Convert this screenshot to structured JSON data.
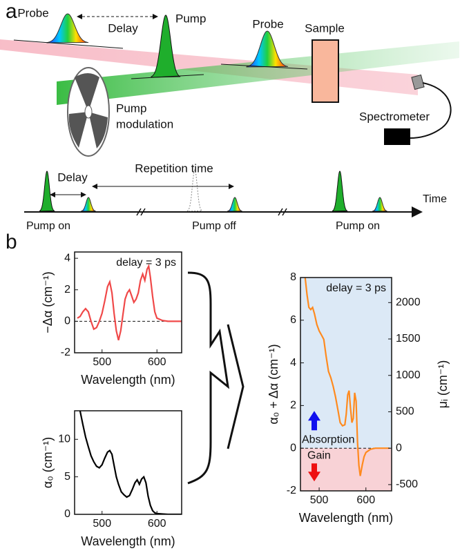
{
  "panels": [
    "a",
    "b"
  ],
  "diagram": {
    "probe_1": "Probe",
    "delay": "Delay",
    "pump": "Pump",
    "probe_2": "Probe",
    "sample": "Sample",
    "modulation": [
      "Pump",
      "modulation"
    ],
    "spectrometer": "Spectrometer",
    "timeline": {
      "delay": "Delay",
      "repetition": "Repetition time",
      "time": "Time",
      "pump_on_1": "Pump on",
      "pump_off": "Pump off",
      "pump_on_2": "Pump on"
    }
  },
  "chart_data": [
    {
      "type": "line",
      "ylabel": "−Δα (cm⁻¹)",
      "xlabel": "Wavelength (nm)",
      "annotations": [
        "delay = 3 ps"
      ],
      "x": [
        455,
        460,
        465,
        470,
        475,
        480,
        485,
        490,
        495,
        500,
        505,
        510,
        514,
        518,
        522,
        526,
        530,
        534,
        538,
        542,
        546,
        550,
        554,
        558,
        562,
        566,
        570,
        574,
        578,
        582,
        585,
        588,
        592,
        596,
        600,
        610,
        620,
        630,
        645
      ],
      "series": [
        {
          "color": "#f04848",
          "values": [
            0.2,
            0.3,
            0.6,
            0.8,
            0.6,
            0,
            -0.5,
            -0.4,
            0,
            0.5,
            1.3,
            2.2,
            2.5,
            1.8,
            0.5,
            -0.6,
            -1.2,
            -0.6,
            0.4,
            1.4,
            1.8,
            2.0,
            1.6,
            1.2,
            1.4,
            1.8,
            2.6,
            3.0,
            2.6,
            3.3,
            3.5,
            2.8,
            1.6,
            0.6,
            0.2,
            0.05,
            0,
            0,
            0
          ]
        }
      ],
      "xlim": [
        450,
        645
      ],
      "ylim": [
        -2,
        4.4
      ],
      "xticks": [
        500,
        600
      ],
      "yticks": [
        -2,
        0,
        2,
        4
      ],
      "hline": 0
    },
    {
      "type": "line",
      "ylabel": "α₀ (cm⁻¹)",
      "xlabel": "Wavelength (nm)",
      "x": [
        460,
        465,
        470,
        475,
        480,
        485,
        490,
        495,
        500,
        505,
        510,
        514,
        518,
        522,
        526,
        530,
        535,
        540,
        545,
        550,
        555,
        560,
        564,
        568,
        572,
        576,
        580,
        584,
        588,
        592,
        596,
        600,
        610,
        620,
        645
      ],
      "series": [
        {
          "color": "#000000",
          "values": [
            13.8,
            12,
            10.3,
            9,
            7.8,
            7,
            6.4,
            6.2,
            6.6,
            7.5,
            8.3,
            8.5,
            8.0,
            6.5,
            5,
            4,
            3,
            2.6,
            2.3,
            2.5,
            3.3,
            4.2,
            4.6,
            4.0,
            4.7,
            5.0,
            4.2,
            2.4,
            1.2,
            0.5,
            0.2,
            0.1,
            0.05,
            0,
            0
          ]
        }
      ],
      "xlim": [
        450,
        645
      ],
      "ylim": [
        0,
        13.8
      ],
      "xticks": [
        500,
        600
      ],
      "yticks": [
        0,
        5,
        10
      ]
    },
    {
      "type": "line",
      "ylabel": "α₀ + Δα (cm⁻¹)",
      "y2label": "μᵢ (cm⁻¹)",
      "xlabel": "Wavelength (nm)",
      "annotations": [
        "delay = 3 ps",
        "Absorption",
        "Gain"
      ],
      "arrow_colors": [
        "#1010ee",
        "#ee1010"
      ],
      "shade_colors": [
        "#dce9f6",
        "#f8d2d6"
      ],
      "x": [
        470,
        474,
        478,
        482,
        486,
        490,
        495,
        500,
        505,
        510,
        515,
        520,
        525,
        530,
        535,
        540,
        545,
        550,
        555,
        558,
        561,
        564,
        567,
        570,
        573,
        576,
        579,
        582,
        585,
        588,
        592,
        596,
        600,
        610,
        620,
        630,
        650
      ],
      "series": [
        {
          "color": "#ff8a1e",
          "values": [
            8,
            7.2,
            6.6,
            6.5,
            6.6,
            6.3,
            5.8,
            5.5,
            5.3,
            5.1,
            4.3,
            3.6,
            3.3,
            2.9,
            2.4,
            1.8,
            1.2,
            1.05,
            1.1,
            1.6,
            2.5,
            2.7,
            1.9,
            1.2,
            1.4,
            2.6,
            2.2,
            0.3,
            -0.8,
            -1.3,
            -0.8,
            -0.4,
            -0.2,
            -0.05,
            0,
            0,
            0
          ]
        }
      ],
      "xlim": [
        460,
        655
      ],
      "ylim": [
        -2,
        8
      ],
      "xticks": [
        500,
        600
      ],
      "yticks": [
        -2,
        0,
        2,
        4,
        6,
        8
      ],
      "y2lim": [
        -586,
        2344
      ],
      "y2ticks": [
        -500,
        0,
        500,
        1000,
        1500,
        2000
      ],
      "hline": 0
    }
  ]
}
